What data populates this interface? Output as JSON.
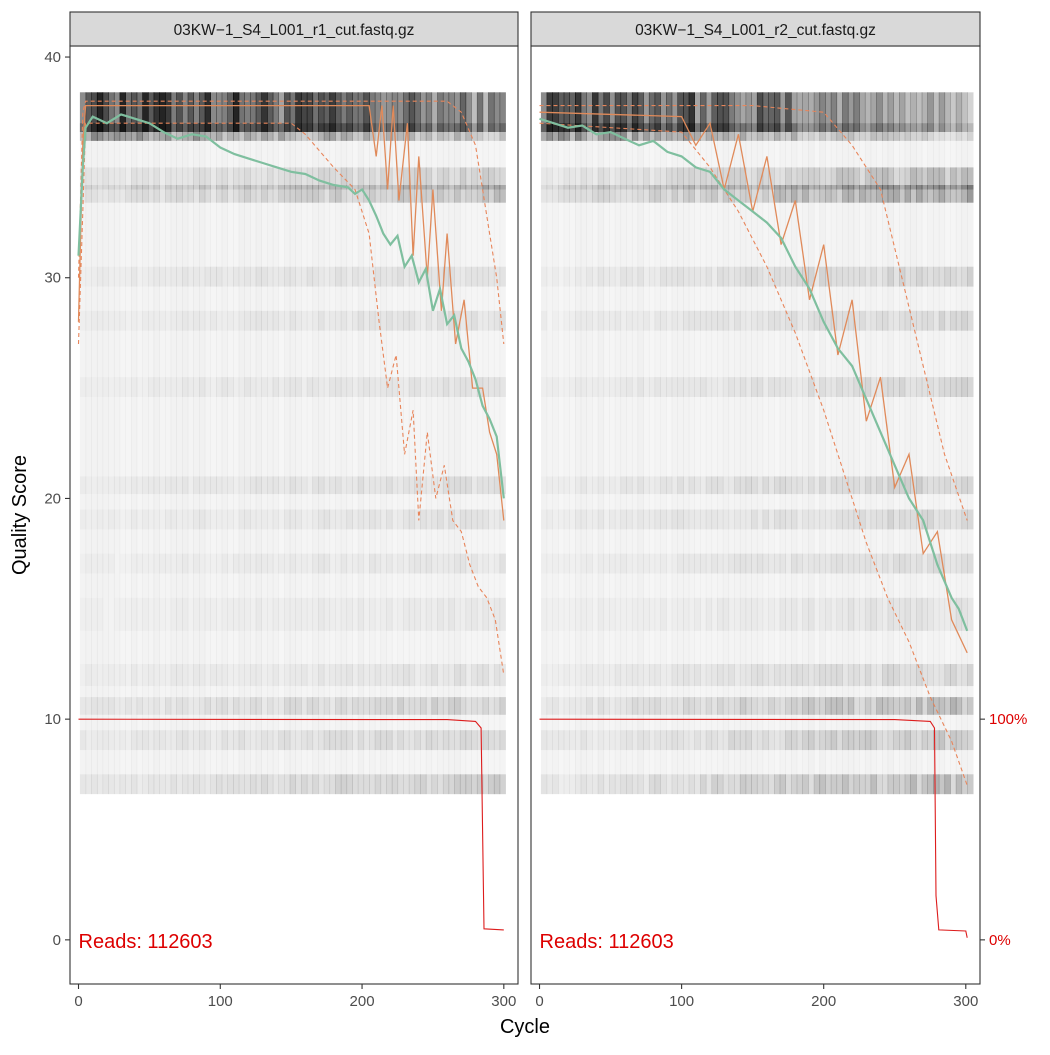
{
  "chart_data": {
    "type": "line",
    "xlabel": "Cycle",
    "ylabel": "Quality Score",
    "xlim": [
      -6,
      310
    ],
    "ylim": [
      -2,
      40.5
    ],
    "x_ticks": [
      0,
      100,
      200,
      300
    ],
    "y_ticks": [
      0,
      10,
      20,
      30,
      40
    ],
    "right_axis": {
      "ticks": [
        {
          "label": "100%",
          "q": 10
        },
        {
          "label": "0%",
          "q": 0
        }
      ],
      "color": "#dd0000"
    },
    "colors": {
      "mean": "#7fbf9f",
      "median": "#e08a5a",
      "quartiles": "#e8855a",
      "cumulative": "#dd1c1c",
      "reads_label": "#dd0000",
      "strip_bg": "#d9d9d9",
      "panel_border": "#333333"
    },
    "panels": [
      {
        "title": "03KW−1_S4_L001_r1_cut.fastq.gz",
        "reads_text": "Reads:  112603",
        "max_cycle": 300,
        "mean": [
          {
            "x": 0,
            "y": 31
          },
          {
            "x": 3,
            "y": 35
          },
          {
            "x": 5,
            "y": 36.8
          },
          {
            "x": 10,
            "y": 37.3
          },
          {
            "x": 20,
            "y": 37.0
          },
          {
            "x": 30,
            "y": 37.4
          },
          {
            "x": 40,
            "y": 37.2
          },
          {
            "x": 50,
            "y": 37.0
          },
          {
            "x": 60,
            "y": 36.6
          },
          {
            "x": 70,
            "y": 36.3
          },
          {
            "x": 80,
            "y": 36.5
          },
          {
            "x": 90,
            "y": 36.4
          },
          {
            "x": 100,
            "y": 35.9
          },
          {
            "x": 110,
            "y": 35.6
          },
          {
            "x": 120,
            "y": 35.4
          },
          {
            "x": 130,
            "y": 35.2
          },
          {
            "x": 140,
            "y": 35.0
          },
          {
            "x": 150,
            "y": 34.8
          },
          {
            "x": 160,
            "y": 34.7
          },
          {
            "x": 170,
            "y": 34.4
          },
          {
            "x": 180,
            "y": 34.2
          },
          {
            "x": 190,
            "y": 34.1
          },
          {
            "x": 195,
            "y": 33.8
          },
          {
            "x": 200,
            "y": 34.0
          },
          {
            "x": 205,
            "y": 33.5
          },
          {
            "x": 210,
            "y": 32.8
          },
          {
            "x": 215,
            "y": 32.0
          },
          {
            "x": 220,
            "y": 31.5
          },
          {
            "x": 225,
            "y": 31.9
          },
          {
            "x": 230,
            "y": 30.5
          },
          {
            "x": 235,
            "y": 31.0
          },
          {
            "x": 240,
            "y": 29.8
          },
          {
            "x": 245,
            "y": 30.4
          },
          {
            "x": 250,
            "y": 28.5
          },
          {
            "x": 255,
            "y": 29.5
          },
          {
            "x": 260,
            "y": 27.9
          },
          {
            "x": 265,
            "y": 28.3
          },
          {
            "x": 270,
            "y": 26.8
          },
          {
            "x": 275,
            "y": 26.2
          },
          {
            "x": 280,
            "y": 25.4
          },
          {
            "x": 285,
            "y": 24.2
          },
          {
            "x": 290,
            "y": 23.6
          },
          {
            "x": 295,
            "y": 22.8
          },
          {
            "x": 300,
            "y": 20.0
          }
        ],
        "median": [
          {
            "x": 0,
            "y": 28
          },
          {
            "x": 3,
            "y": 36
          },
          {
            "x": 5,
            "y": 37.8
          },
          {
            "x": 200,
            "y": 37.8
          },
          {
            "x": 205,
            "y": 37.8
          },
          {
            "x": 210,
            "y": 35.5
          },
          {
            "x": 214,
            "y": 37.8
          },
          {
            "x": 218,
            "y": 34.0
          },
          {
            "x": 222,
            "y": 37.8
          },
          {
            "x": 226,
            "y": 33.5
          },
          {
            "x": 232,
            "y": 37.0
          },
          {
            "x": 236,
            "y": 31.0
          },
          {
            "x": 240,
            "y": 35.5
          },
          {
            "x": 246,
            "y": 30.0
          },
          {
            "x": 250,
            "y": 34.0
          },
          {
            "x": 256,
            "y": 28.5
          },
          {
            "x": 260,
            "y": 32.0
          },
          {
            "x": 266,
            "y": 27.0
          },
          {
            "x": 272,
            "y": 29.0
          },
          {
            "x": 278,
            "y": 25.0
          },
          {
            "x": 285,
            "y": 25.0
          },
          {
            "x": 290,
            "y": 23.0
          },
          {
            "x": 295,
            "y": 22.0
          },
          {
            "x": 300,
            "y": 19.0
          }
        ],
        "q25": [
          {
            "x": 0,
            "y": 27
          },
          {
            "x": 3,
            "y": 33
          },
          {
            "x": 5,
            "y": 37.0
          },
          {
            "x": 150,
            "y": 37.0
          },
          {
            "x": 160,
            "y": 36.5
          },
          {
            "x": 180,
            "y": 35.0
          },
          {
            "x": 195,
            "y": 34.0
          },
          {
            "x": 205,
            "y": 32.0
          },
          {
            "x": 212,
            "y": 28.0
          },
          {
            "x": 218,
            "y": 25.0
          },
          {
            "x": 224,
            "y": 26.5
          },
          {
            "x": 230,
            "y": 22.0
          },
          {
            "x": 236,
            "y": 24.0
          },
          {
            "x": 240,
            "y": 19.0
          },
          {
            "x": 246,
            "y": 23.0
          },
          {
            "x": 252,
            "y": 20.0
          },
          {
            "x": 258,
            "y": 21.5
          },
          {
            "x": 264,
            "y": 19.0
          },
          {
            "x": 270,
            "y": 18.5
          },
          {
            "x": 276,
            "y": 17.0
          },
          {
            "x": 282,
            "y": 16.0
          },
          {
            "x": 288,
            "y": 15.5
          },
          {
            "x": 294,
            "y": 14.5
          },
          {
            "x": 300,
            "y": 12.0
          }
        ],
        "q75": [
          {
            "x": 0,
            "y": 30
          },
          {
            "x": 3,
            "y": 37.5
          },
          {
            "x": 5,
            "y": 38.0
          },
          {
            "x": 260,
            "y": 38.0
          },
          {
            "x": 270,
            "y": 37.5
          },
          {
            "x": 280,
            "y": 36.0
          },
          {
            "x": 285,
            "y": 34.0
          },
          {
            "x": 290,
            "y": 32.0
          },
          {
            "x": 295,
            "y": 30.0
          },
          {
            "x": 300,
            "y": 27.0
          }
        ],
        "cumulative": [
          {
            "x": 0,
            "y": 10
          },
          {
            "x": 260,
            "y": 9.98
          },
          {
            "x": 280,
            "y": 9.9
          },
          {
            "x": 284,
            "y": 9.6
          },
          {
            "x": 286,
            "y": 0.5
          },
          {
            "x": 300,
            "y": 0.45
          }
        ]
      },
      {
        "title": "03KW−1_S4_L001_r2_cut.fastq.gz",
        "reads_text": "Reads:  112603",
        "max_cycle": 301,
        "mean": [
          {
            "x": 0,
            "y": 37.2
          },
          {
            "x": 10,
            "y": 37.0
          },
          {
            "x": 20,
            "y": 36.8
          },
          {
            "x": 30,
            "y": 36.9
          },
          {
            "x": 40,
            "y": 36.5
          },
          {
            "x": 50,
            "y": 36.6
          },
          {
            "x": 60,
            "y": 36.3
          },
          {
            "x": 70,
            "y": 36.0
          },
          {
            "x": 80,
            "y": 36.2
          },
          {
            "x": 90,
            "y": 35.7
          },
          {
            "x": 100,
            "y": 35.5
          },
          {
            "x": 110,
            "y": 35.0
          },
          {
            "x": 120,
            "y": 34.8
          },
          {
            "x": 130,
            "y": 34.0
          },
          {
            "x": 140,
            "y": 33.5
          },
          {
            "x": 150,
            "y": 33.0
          },
          {
            "x": 160,
            "y": 32.5
          },
          {
            "x": 170,
            "y": 31.8
          },
          {
            "x": 180,
            "y": 30.5
          },
          {
            "x": 190,
            "y": 29.5
          },
          {
            "x": 200,
            "y": 28.0
          },
          {
            "x": 210,
            "y": 26.8
          },
          {
            "x": 220,
            "y": 26.0
          },
          {
            "x": 230,
            "y": 24.5
          },
          {
            "x": 240,
            "y": 23.0
          },
          {
            "x": 250,
            "y": 21.5
          },
          {
            "x": 260,
            "y": 20.0
          },
          {
            "x": 270,
            "y": 19.0
          },
          {
            "x": 280,
            "y": 17.0
          },
          {
            "x": 290,
            "y": 15.5
          },
          {
            "x": 295,
            "y": 15.0
          },
          {
            "x": 301,
            "y": 14.0
          }
        ],
        "median": [
          {
            "x": 0,
            "y": 37.5
          },
          {
            "x": 100,
            "y": 37.3
          },
          {
            "x": 110,
            "y": 36.0
          },
          {
            "x": 120,
            "y": 37.0
          },
          {
            "x": 130,
            "y": 34.0
          },
          {
            "x": 140,
            "y": 36.5
          },
          {
            "x": 150,
            "y": 33.0
          },
          {
            "x": 160,
            "y": 35.5
          },
          {
            "x": 170,
            "y": 31.5
          },
          {
            "x": 180,
            "y": 33.5
          },
          {
            "x": 190,
            "y": 29.0
          },
          {
            "x": 200,
            "y": 31.5
          },
          {
            "x": 210,
            "y": 26.5
          },
          {
            "x": 220,
            "y": 29.0
          },
          {
            "x": 230,
            "y": 23.5
          },
          {
            "x": 240,
            "y": 25.5
          },
          {
            "x": 250,
            "y": 20.5
          },
          {
            "x": 260,
            "y": 22.0
          },
          {
            "x": 270,
            "y": 17.5
          },
          {
            "x": 280,
            "y": 18.5
          },
          {
            "x": 290,
            "y": 14.5
          },
          {
            "x": 301,
            "y": 13.0
          }
        ],
        "q25": [
          {
            "x": 0,
            "y": 37.0
          },
          {
            "x": 100,
            "y": 36.6
          },
          {
            "x": 120,
            "y": 35.0
          },
          {
            "x": 140,
            "y": 33.0
          },
          {
            "x": 160,
            "y": 30.5
          },
          {
            "x": 180,
            "y": 27.5
          },
          {
            "x": 200,
            "y": 24.0
          },
          {
            "x": 215,
            "y": 21.0
          },
          {
            "x": 230,
            "y": 18.0
          },
          {
            "x": 245,
            "y": 15.5
          },
          {
            "x": 260,
            "y": 13.5
          },
          {
            "x": 275,
            "y": 11.0
          },
          {
            "x": 290,
            "y": 9.0
          },
          {
            "x": 301,
            "y": 7.0
          }
        ],
        "q75": [
          {
            "x": 0,
            "y": 37.8
          },
          {
            "x": 150,
            "y": 37.8
          },
          {
            "x": 200,
            "y": 37.5
          },
          {
            "x": 220,
            "y": 36.0
          },
          {
            "x": 240,
            "y": 34.0
          },
          {
            "x": 255,
            "y": 30.0
          },
          {
            "x": 270,
            "y": 26.0
          },
          {
            "x": 285,
            "y": 22.0
          },
          {
            "x": 301,
            "y": 19.0
          }
        ],
        "cumulative": [
          {
            "x": 0,
            "y": 10
          },
          {
            "x": 250,
            "y": 9.98
          },
          {
            "x": 275,
            "y": 9.9
          },
          {
            "x": 278,
            "y": 9.6
          },
          {
            "x": 279,
            "y": 2.0
          },
          {
            "x": 281,
            "y": 0.45
          },
          {
            "x": 300,
            "y": 0.4
          },
          {
            "x": 301,
            "y": 0.1
          }
        ]
      }
    ]
  }
}
